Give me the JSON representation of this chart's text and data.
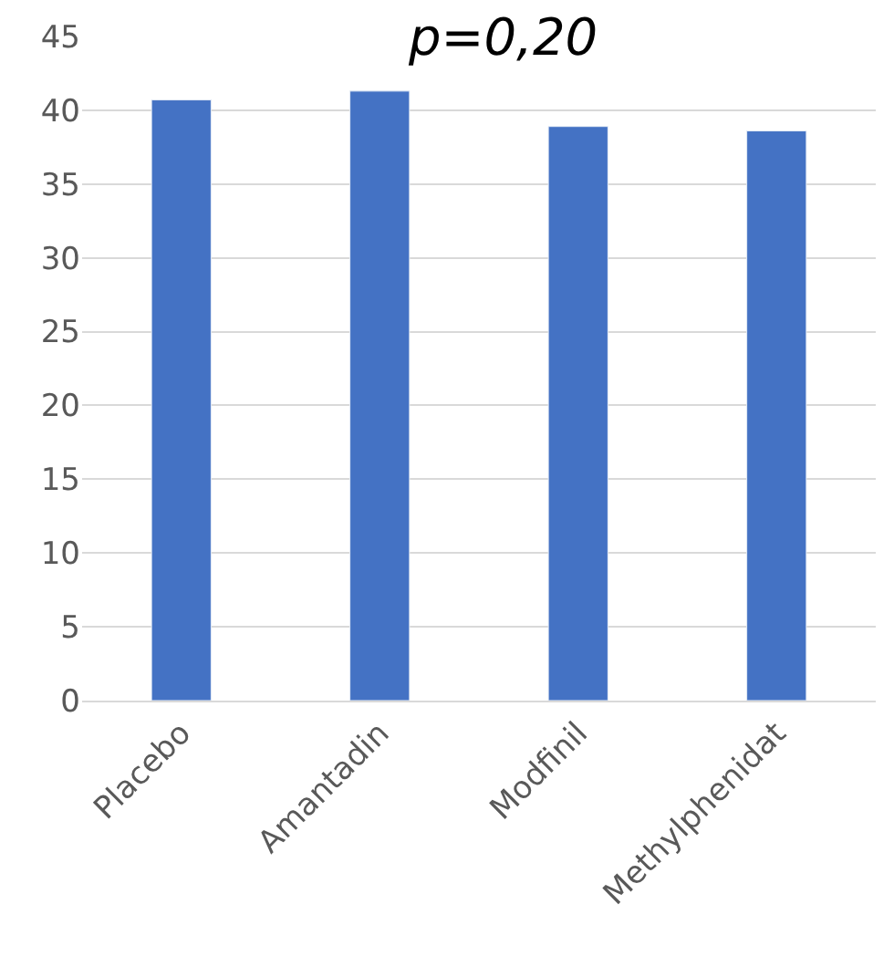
{
  "chart_data": {
    "type": "bar",
    "categories": [
      "Placebo",
      "Amantadin",
      "Modfinil",
      "Methylphenidat"
    ],
    "values": [
      40.7,
      41.3,
      38.9,
      38.6
    ],
    "color": "#4472c4",
    "ylim": [
      0,
      45
    ],
    "yticks": [
      0,
      5,
      10,
      15,
      20,
      25,
      30,
      35,
      40,
      45
    ],
    "grid": "y",
    "annotations": [
      "p=0,20"
    ]
  }
}
